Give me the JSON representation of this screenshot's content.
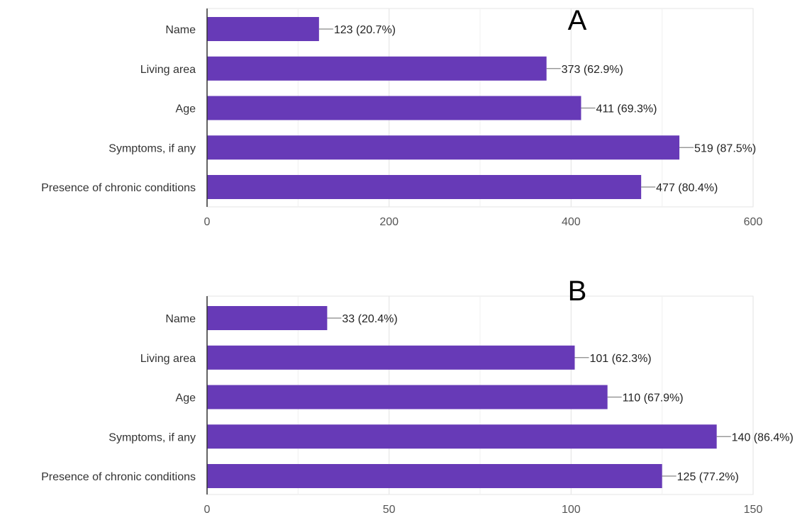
{
  "chart_data": [
    {
      "type": "bar",
      "orientation": "horizontal",
      "panel_label": "A",
      "categories": [
        "Name",
        "Living area",
        "Age",
        "Symptoms, if any",
        "Presence of chronic conditions"
      ],
      "values": [
        123,
        373,
        411,
        519,
        477
      ],
      "data_labels": [
        "123 (20.7%)",
        "373 (62.9%)",
        "411 (69.3%)",
        "519 (87.5%)",
        "477 (80.4%)"
      ],
      "xlim": [
        0,
        600
      ],
      "ticks": [
        0,
        200,
        400,
        600
      ],
      "tick_labels": [
        "0",
        "200",
        "400",
        "600"
      ],
      "grid": true,
      "bar_color": "#673ab7"
    },
    {
      "type": "bar",
      "orientation": "horizontal",
      "panel_label": "B",
      "categories": [
        "Name",
        "Living area",
        "Age",
        "Symptoms, if any",
        "Presence of chronic conditions"
      ],
      "values": [
        33,
        101,
        110,
        140,
        125
      ],
      "data_labels": [
        "33 (20.4%)",
        "101 (62.3%)",
        "110 (67.9%)",
        "140 (86.4%)",
        "125 (77.2%)"
      ],
      "xlim": [
        0,
        150
      ],
      "ticks": [
        0,
        50,
        100,
        150
      ],
      "tick_labels": [
        "0",
        "50",
        "100",
        "150"
      ],
      "grid": true,
      "bar_color": "#673ab7"
    }
  ]
}
